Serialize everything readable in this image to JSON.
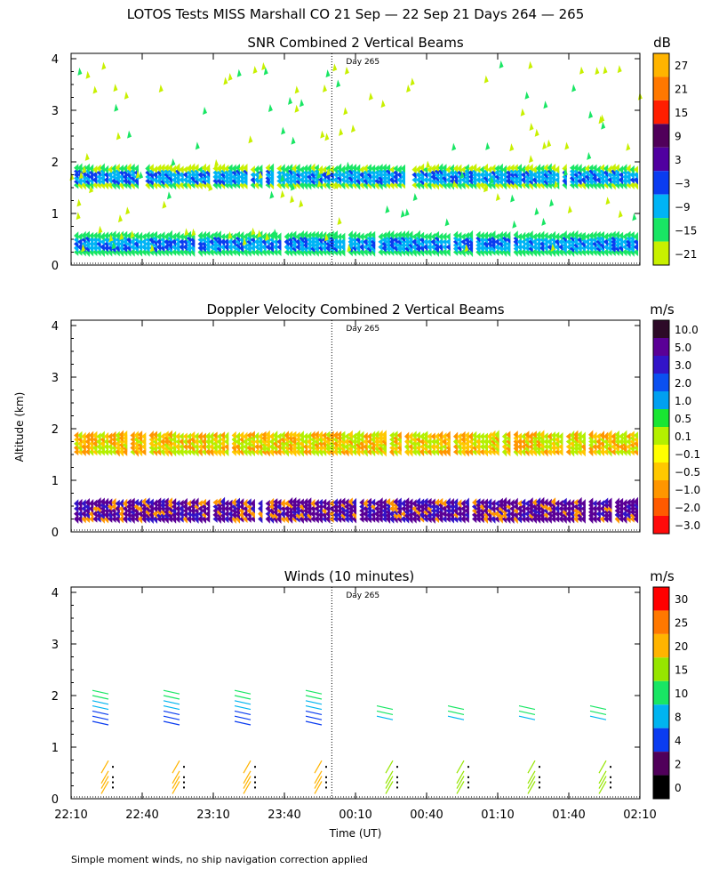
{
  "figure": {
    "title": "LOTOS Tests MISS Marshall CO  21 Sep — 22 Sep 21 Days 264 — 265",
    "ylabel": "Altitude (km)",
    "xlabel": "Time (UT)",
    "footnote": "Simple moment winds, no ship navigation correction applied",
    "day_marker": "Day 265"
  },
  "chart_data": [
    {
      "type": "heatmap",
      "title": "SNR Combined 2 Vertical Beams",
      "colorbar_unit": "dB",
      "colorbar_ticks": [
        "27",
        "21",
        "15",
        "9",
        "3",
        "−3",
        "−9",
        "−15",
        "−21"
      ],
      "colors": [
        "#ffb400",
        "#ff7800",
        "#ff1e00",
        "#50005a",
        "#5000a0",
        "#0a3cf0",
        "#00b4f5",
        "#19e664",
        "#c8f000"
      ],
      "x_ticks": [
        "22:10",
        "22:40",
        "23:10",
        "23:40",
        "00:10",
        "00:40",
        "01:10",
        "01:40",
        "02:10"
      ],
      "y_ticks": [
        "0",
        "1",
        "2",
        "3",
        "4"
      ],
      "ylim": [
        0,
        4
      ],
      "x_units": "time UT",
      "day_boundary_x": "00:00",
      "bands": [
        {
          "from_km": 0.25,
          "to_km": 0.65,
          "snr_db": "-9 to 3"
        },
        {
          "from_km": 1.55,
          "to_km": 1.95,
          "snr_db": "-15 to 3"
        }
      ]
    },
    {
      "type": "heatmap",
      "title": "Doppler Velocity Combined 2 Vertical Beams",
      "colorbar_unit": "m/s",
      "colorbar_ticks": [
        "10.0",
        "5.0",
        "3.0",
        "2.0",
        "1.0",
        "0.5",
        "0.1",
        "−0.1",
        "−0.5",
        "−1.0",
        "−2.0",
        "−3.0"
      ],
      "colors": [
        "#2d0a28",
        "#5a0096",
        "#3214c8",
        "#0a50f0",
        "#00a0f0",
        "#19e632",
        "#b4f000",
        "#ffff00",
        "#ffc800",
        "#ff9600",
        "#ff5a00",
        "#ff0a0a"
      ],
      "x_ticks": [
        "22:10",
        "22:40",
        "23:10",
        "23:40",
        "00:10",
        "00:40",
        "01:10",
        "01:40",
        "02:10"
      ],
      "y_ticks": [
        "0",
        "1",
        "2",
        "3",
        "4"
      ],
      "ylim": [
        0,
        4
      ],
      "day_boundary_x": "00:00",
      "bands": [
        {
          "from_km": 0.25,
          "to_km": 0.65,
          "velocity_ms": "3.0 to 10.0"
        },
        {
          "from_km": 1.55,
          "to_km": 1.95,
          "velocity_ms": "-1.0 to 0.5"
        }
      ]
    },
    {
      "type": "scatter",
      "title": "Winds (10 minutes)",
      "colorbar_unit": "m/s",
      "colorbar_ticks": [
        "30",
        "25",
        "20",
        "15",
        "10",
        "8",
        "4",
        "2",
        "0"
      ],
      "colors": [
        "#ff0000",
        "#ff7800",
        "#ffb400",
        "#96e600",
        "#19e664",
        "#00b4f0",
        "#0a3cf0",
        "#50005a",
        "#000000"
      ],
      "x_ticks": [
        "22:10",
        "22:40",
        "23:10",
        "23:40",
        "00:10",
        "00:40",
        "01:10",
        "01:40",
        "02:10"
      ],
      "y_ticks": [
        "0",
        "1",
        "2",
        "3",
        "4"
      ],
      "ylim": [
        0,
        4
      ],
      "day_boundary_x": "00:00",
      "profile_times": [
        "22:25",
        "22:55",
        "23:25",
        "23:55",
        "00:25",
        "00:55",
        "01:25",
        "01:55"
      ]
    }
  ]
}
